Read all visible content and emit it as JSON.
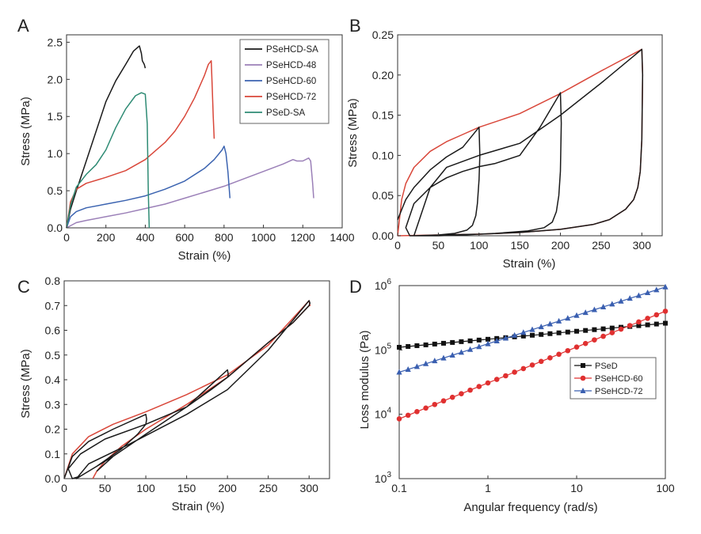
{
  "figure": {
    "panels": [
      "A",
      "B",
      "C",
      "D"
    ]
  },
  "chart_data": [
    {
      "panel": "A",
      "type": "line",
      "xlabel": "Strain (%)",
      "ylabel": "Stress (MPa)",
      "xlim": [
        0,
        1400
      ],
      "ylim": [
        0,
        2.6
      ],
      "xticks": [
        0,
        200,
        400,
        600,
        800,
        1000,
        1200,
        1400
      ],
      "yticks": [
        0.0,
        0.5,
        1.0,
        1.5,
        2.0,
        2.5
      ],
      "xtick_labels": [
        "0",
        "200",
        "400",
        "600",
        "800",
        "1000",
        "1200",
        "1400"
      ],
      "ytick_labels": [
        "0.0",
        "0.5",
        "1.0",
        "1.5",
        "2.0",
        "2.5"
      ],
      "legend_position": "top-right",
      "series": [
        {
          "name": "PSeHCD-SA",
          "color": "#1a1a1a",
          "x": [
            0,
            20,
            50,
            100,
            150,
            200,
            250,
            300,
            340,
            370,
            380,
            385,
            395,
            400
          ],
          "y": [
            0,
            0.25,
            0.5,
            0.9,
            1.3,
            1.7,
            1.98,
            2.2,
            2.38,
            2.45,
            2.35,
            2.25,
            2.2,
            2.15
          ]
        },
        {
          "name": "PSeHCD-48",
          "color": "#9b80b8",
          "x": [
            0,
            50,
            100,
            200,
            300,
            400,
            500,
            600,
            700,
            800,
            900,
            1000,
            1100,
            1150,
            1170,
            1200,
            1230,
            1240,
            1250,
            1255
          ],
          "y": [
            0,
            0.07,
            0.1,
            0.15,
            0.2,
            0.26,
            0.32,
            0.4,
            0.48,
            0.56,
            0.66,
            0.76,
            0.86,
            0.92,
            0.9,
            0.9,
            0.94,
            0.9,
            0.6,
            0.4
          ]
        },
        {
          "name": "PSeHCD-60",
          "color": "#3b63b0",
          "x": [
            0,
            20,
            50,
            100,
            200,
            300,
            400,
            500,
            600,
            700,
            750,
            790,
            800,
            810,
            820,
            830
          ],
          "y": [
            0,
            0.15,
            0.22,
            0.27,
            0.32,
            0.37,
            0.43,
            0.52,
            0.63,
            0.8,
            0.92,
            1.05,
            1.1,
            1.0,
            0.75,
            0.4
          ]
        },
        {
          "name": "PSeHCD-72",
          "color": "#d9473a",
          "x": [
            0,
            20,
            50,
            100,
            200,
            300,
            400,
            500,
            550,
            600,
            650,
            700,
            720,
            735,
            740,
            745,
            750
          ],
          "y": [
            0,
            0.35,
            0.52,
            0.6,
            0.68,
            0.77,
            0.92,
            1.15,
            1.3,
            1.5,
            1.75,
            2.05,
            2.2,
            2.25,
            1.9,
            1.5,
            1.2
          ]
        },
        {
          "name": "PSeD-SA",
          "color": "#2e8b74",
          "x": [
            0,
            20,
            50,
            100,
            150,
            200,
            250,
            300,
            350,
            380,
            400,
            410,
            415,
            420
          ],
          "y": [
            0,
            0.3,
            0.55,
            0.72,
            0.85,
            1.05,
            1.35,
            1.6,
            1.78,
            1.82,
            1.8,
            1.4,
            0.5,
            0
          ]
        }
      ]
    },
    {
      "panel": "B",
      "type": "line",
      "xlabel": "Strain (%)",
      "ylabel": "Stress (MPa)",
      "xlim": [
        0,
        325
      ],
      "ylim": [
        0,
        0.25
      ],
      "xticks": [
        0,
        50,
        100,
        150,
        200,
        250,
        300
      ],
      "yticks": [
        0.0,
        0.05,
        0.1,
        0.15,
        0.2,
        0.25
      ],
      "xtick_labels": [
        "0",
        "50",
        "100",
        "150",
        "200",
        "250",
        "300"
      ],
      "ytick_labels": [
        "0.00",
        "0.05",
        "0.10",
        "0.15",
        "0.20",
        "0.25"
      ],
      "series": [
        {
          "color": "#d9473a",
          "x": [
            0,
            5,
            10,
            20,
            40,
            60,
            80,
            100,
            150,
            200,
            250,
            300,
            301,
            300,
            298,
            295,
            290,
            280,
            260,
            240,
            200,
            150,
            100,
            50,
            0
          ],
          "y": [
            0,
            0.045,
            0.065,
            0.085,
            0.105,
            0.117,
            0.126,
            0.135,
            0.152,
            0.177,
            0.205,
            0.232,
            0.2,
            0.12,
            0.08,
            0.06,
            0.045,
            0.033,
            0.02,
            0.014,
            0.008,
            0.004,
            0.002,
            0.001,
            0
          ]
        },
        {
          "color": "#1a1a1a",
          "x": [
            0,
            10,
            20,
            40,
            60,
            80,
            100,
            101,
            100,
            98,
            96,
            92,
            85,
            70,
            50,
            30,
            15,
            10,
            20,
            40,
            60,
            80,
            100,
            120,
            150,
            175,
            200,
            201,
            200,
            198,
            195,
            190,
            180,
            160,
            120,
            80,
            50,
            30,
            20,
            40,
            60,
            100,
            150,
            200,
            250,
            300,
            301,
            300,
            298,
            295,
            290,
            280,
            260,
            240,
            200,
            150,
            100,
            50,
            20
          ],
          "y": [
            0.02,
            0.045,
            0.06,
            0.082,
            0.098,
            0.11,
            0.135,
            0.1,
            0.07,
            0.04,
            0.025,
            0.013,
            0.007,
            0.003,
            0.001,
            0,
            0,
            0.01,
            0.04,
            0.06,
            0.072,
            0.08,
            0.086,
            0.09,
            0.1,
            0.135,
            0.178,
            0.14,
            0.08,
            0.05,
            0.03,
            0.017,
            0.01,
            0.006,
            0.003,
            0.001,
            0,
            0,
            0,
            0.06,
            0.085,
            0.1,
            0.115,
            0.15,
            0.19,
            0.232,
            0.2,
            0.12,
            0.08,
            0.06,
            0.045,
            0.033,
            0.02,
            0.014,
            0.008,
            0.004,
            0.002,
            0.001,
            0
          ]
        }
      ]
    },
    {
      "panel": "C",
      "type": "line",
      "xlabel": "Strain (%)",
      "ylabel": "Stress (MPa)",
      "xlim": [
        0,
        325
      ],
      "ylim": [
        0,
        0.8
      ],
      "xticks": [
        0,
        50,
        100,
        150,
        200,
        250,
        300
      ],
      "yticks": [
        0.0,
        0.1,
        0.2,
        0.3,
        0.4,
        0.5,
        0.6,
        0.7,
        0.8
      ],
      "xtick_labels": [
        "0",
        "50",
        "100",
        "150",
        "200",
        "250",
        "300"
      ],
      "ytick_labels": [
        "0.0",
        "0.1",
        "0.2",
        "0.3",
        "0.4",
        "0.5",
        "0.6",
        "0.7",
        "0.8"
      ],
      "series": [
        {
          "color": "#d9473a",
          "x": [
            0,
            10,
            30,
            60,
            100,
            150,
            200,
            250,
            300,
            301,
            300,
            280,
            250,
            200,
            150,
            100,
            70,
            50,
            40,
            35
          ],
          "y": [
            0,
            0.1,
            0.17,
            0.22,
            0.27,
            0.34,
            0.42,
            0.54,
            0.72,
            0.7,
            0.7,
            0.63,
            0.55,
            0.41,
            0.3,
            0.2,
            0.13,
            0.07,
            0.03,
            0
          ]
        },
        {
          "color": "#1a1a1a",
          "x": [
            0,
            10,
            30,
            60,
            100,
            101,
            100,
            90,
            70,
            40,
            20,
            10,
            5,
            20,
            50,
            100,
            150,
            200,
            201,
            200,
            180,
            150,
            100,
            60,
            30,
            15,
            30,
            80,
            150,
            200,
            250,
            300,
            301,
            300,
            280,
            250,
            200,
            150,
            100,
            60,
            40
          ],
          "y": [
            0,
            0.09,
            0.15,
            0.2,
            0.26,
            0.24,
            0.22,
            0.18,
            0.12,
            0.05,
            0.01,
            0,
            0.04,
            0.1,
            0.16,
            0.22,
            0.29,
            0.44,
            0.42,
            0.41,
            0.36,
            0.29,
            0.18,
            0.09,
            0.03,
            0,
            0.06,
            0.14,
            0.26,
            0.36,
            0.52,
            0.72,
            0.71,
            0.7,
            0.63,
            0.55,
            0.41,
            0.29,
            0.18,
            0.09,
            0.03
          ]
        }
      ]
    },
    {
      "panel": "D",
      "type": "scatter",
      "xlabel": "Angular frequency (rad/s)",
      "ylabel": "Loss modulus (Pa)",
      "xscale": "log",
      "yscale": "log",
      "xlim": [
        0.1,
        100
      ],
      "ylim": [
        1000,
        1000000
      ],
      "xticks": [
        0.1,
        1,
        10,
        100
      ],
      "xtick_labels": [
        "0.1",
        "1",
        "10",
        "100"
      ],
      "yticks": [
        1000,
        10000,
        100000,
        1000000
      ],
      "ytick_labels": [
        {
          "base": "10",
          "exp": "3"
        },
        {
          "base": "10",
          "exp": "4"
        },
        {
          "base": "10",
          "exp": "5"
        },
        {
          "base": "10",
          "exp": "6"
        }
      ],
      "legend_position": "lower-right",
      "series": [
        {
          "name": "PSeD",
          "color": "#111111",
          "marker": "square",
          "y_at_x_min": 110000,
          "y_at_x_max": 260000,
          "points_per_decade": 10
        },
        {
          "name": "PSeHCD-60",
          "color": "#e03030",
          "marker": "circle",
          "y_at_x_min": 8500,
          "y_at_x_max": 400000,
          "points_per_decade": 10
        },
        {
          "name": "PSeHCD-72",
          "color": "#3a5fb0",
          "marker": "triangle",
          "y_at_x_min": 45000,
          "y_at_x_max": 950000,
          "points_per_decade": 10
        }
      ]
    }
  ]
}
